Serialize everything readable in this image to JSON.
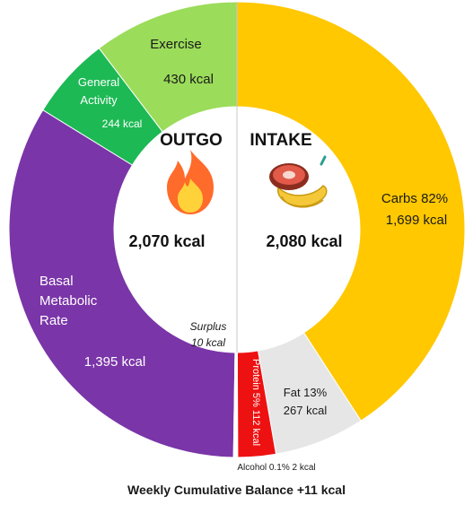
{
  "chart_data": {
    "type": "pie",
    "subtype": "donut",
    "caption": "Weekly Cumulative Balance +11 kcal",
    "outgo": {
      "heading": "OUTGO",
      "total": "2,070 kcal",
      "icon": "fire-icon",
      "segments": [
        {
          "name": "Basal Metabolic Rate",
          "value": 1395,
          "label_lines": [
            "Basal",
            "Metabolic",
            "Rate"
          ],
          "value_label": "1,395 kcal",
          "color": "#7a35a8"
        },
        {
          "name": "General Activity",
          "value": 244,
          "label_lines": [
            "General",
            "Activity"
          ],
          "value_label": "244 kcal",
          "color": "#1db954"
        },
        {
          "name": "Exercise",
          "value": 430,
          "label_lines": [
            "Exercise"
          ],
          "value_label": "430 kcal",
          "color": "#9bdc5a"
        },
        {
          "name": "Surplus",
          "value": 10,
          "label_lines": [
            "Surplus"
          ],
          "value_label": "10 kcal",
          "color": "#ffffff"
        }
      ]
    },
    "intake": {
      "heading": "INTAKE",
      "total": "2,080 kcal",
      "icon": "food-icon",
      "segments": [
        {
          "name": "Carbs",
          "value": 1699,
          "pct": "82%",
          "label": "Carbs 82%",
          "value_label": "1,699 kcal",
          "color": "#ffc800"
        },
        {
          "name": "Fat",
          "value": 267,
          "pct": "13%",
          "label": "Fat 13%",
          "value_label": "267 kcal",
          "color": "#e6e6e6"
        },
        {
          "name": "Protein",
          "value": 112,
          "pct": "5%",
          "label": "Protein 5% 112 kcal",
          "color": "#ee1111"
        },
        {
          "name": "Alcohol",
          "value": 2,
          "pct": "0.1%",
          "label": "Alcohol 0.1% 2 kcal",
          "color": "#ffffff"
        }
      ]
    }
  }
}
